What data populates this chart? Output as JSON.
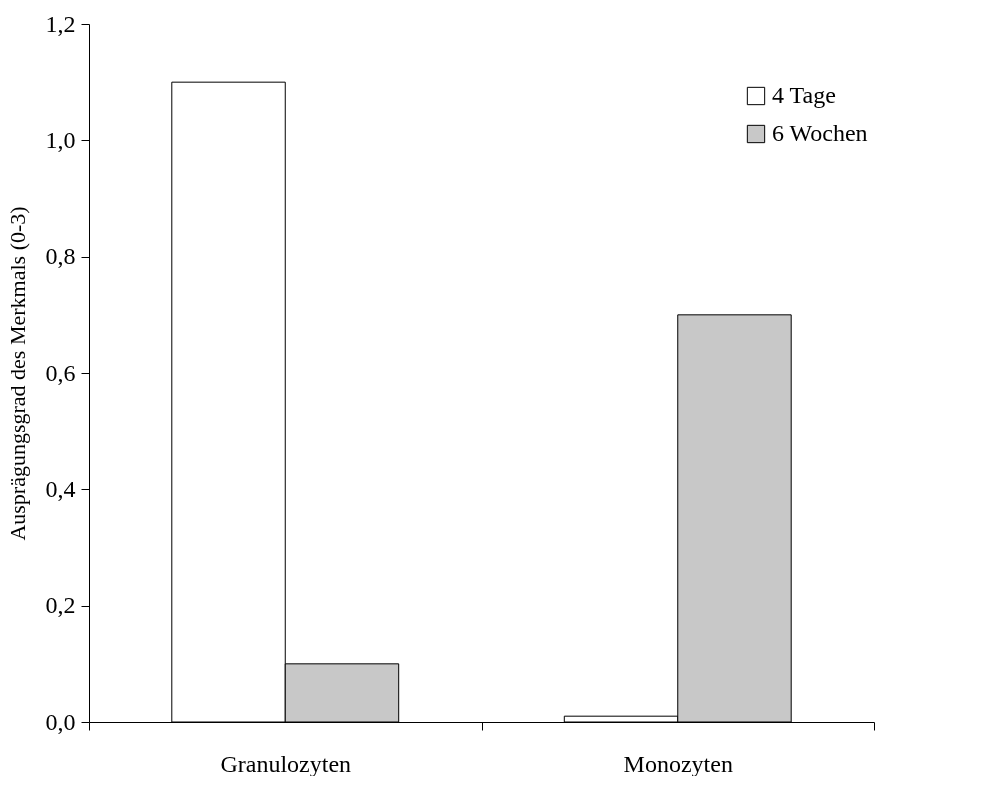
{
  "chart_data": {
    "type": "bar",
    "ylabel": "Ausprägungsgrad des Merkmals (0-3)",
    "categories": [
      "Granulozyten",
      "Monozyten"
    ],
    "series": [
      {
        "name": "4 Tage",
        "color": "#ffffff",
        "values": [
          1.1,
          0.01
        ]
      },
      {
        "name": "6 Wochen",
        "color": "#c8c8c8",
        "values": [
          0.1,
          0.7
        ]
      }
    ],
    "ylim": [
      0,
      1.2
    ],
    "yticks": [
      {
        "value": 0,
        "label": "0,0"
      },
      {
        "value": 0.2,
        "label": "0,2"
      },
      {
        "value": 0.4,
        "label": "0,4"
      },
      {
        "value": 0.6,
        "label": "0,6"
      },
      {
        "value": 0.8,
        "label": "0,8"
      },
      {
        "value": 1.0,
        "label": "1,0"
      },
      {
        "value": 1.2,
        "label": "1,2"
      }
    ],
    "grid": false,
    "legend": "top right"
  }
}
